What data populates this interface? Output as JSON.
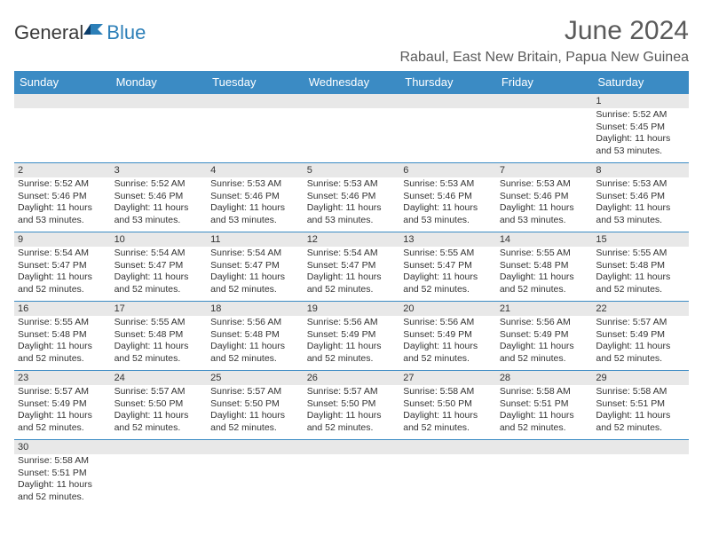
{
  "brand": {
    "part1": "General",
    "part2": "Blue"
  },
  "title": "June 2024",
  "location": "Rabaul, East New Britain, Papua New Guinea",
  "colors": {
    "header_bg": "#3b8bc4",
    "header_text": "#ffffff",
    "daynum_bg": "#e8e8e8",
    "border": "#3b8bc4",
    "title_color": "#5a5a5a",
    "brand_blue": "#2c7fb8"
  },
  "weekdays": [
    "Sunday",
    "Monday",
    "Tuesday",
    "Wednesday",
    "Thursday",
    "Friday",
    "Saturday"
  ],
  "startOffset": 6,
  "days": [
    {
      "n": 1,
      "sunrise": "5:52 AM",
      "sunset": "5:45 PM",
      "dl": "11 hours and 53 minutes."
    },
    {
      "n": 2,
      "sunrise": "5:52 AM",
      "sunset": "5:46 PM",
      "dl": "11 hours and 53 minutes."
    },
    {
      "n": 3,
      "sunrise": "5:52 AM",
      "sunset": "5:46 PM",
      "dl": "11 hours and 53 minutes."
    },
    {
      "n": 4,
      "sunrise": "5:53 AM",
      "sunset": "5:46 PM",
      "dl": "11 hours and 53 minutes."
    },
    {
      "n": 5,
      "sunrise": "5:53 AM",
      "sunset": "5:46 PM",
      "dl": "11 hours and 53 minutes."
    },
    {
      "n": 6,
      "sunrise": "5:53 AM",
      "sunset": "5:46 PM",
      "dl": "11 hours and 53 minutes."
    },
    {
      "n": 7,
      "sunrise": "5:53 AM",
      "sunset": "5:46 PM",
      "dl": "11 hours and 53 minutes."
    },
    {
      "n": 8,
      "sunrise": "5:53 AM",
      "sunset": "5:46 PM",
      "dl": "11 hours and 53 minutes."
    },
    {
      "n": 9,
      "sunrise": "5:54 AM",
      "sunset": "5:47 PM",
      "dl": "11 hours and 52 minutes."
    },
    {
      "n": 10,
      "sunrise": "5:54 AM",
      "sunset": "5:47 PM",
      "dl": "11 hours and 52 minutes."
    },
    {
      "n": 11,
      "sunrise": "5:54 AM",
      "sunset": "5:47 PM",
      "dl": "11 hours and 52 minutes."
    },
    {
      "n": 12,
      "sunrise": "5:54 AM",
      "sunset": "5:47 PM",
      "dl": "11 hours and 52 minutes."
    },
    {
      "n": 13,
      "sunrise": "5:55 AM",
      "sunset": "5:47 PM",
      "dl": "11 hours and 52 minutes."
    },
    {
      "n": 14,
      "sunrise": "5:55 AM",
      "sunset": "5:48 PM",
      "dl": "11 hours and 52 minutes."
    },
    {
      "n": 15,
      "sunrise": "5:55 AM",
      "sunset": "5:48 PM",
      "dl": "11 hours and 52 minutes."
    },
    {
      "n": 16,
      "sunrise": "5:55 AM",
      "sunset": "5:48 PM",
      "dl": "11 hours and 52 minutes."
    },
    {
      "n": 17,
      "sunrise": "5:55 AM",
      "sunset": "5:48 PM",
      "dl": "11 hours and 52 minutes."
    },
    {
      "n": 18,
      "sunrise": "5:56 AM",
      "sunset": "5:48 PM",
      "dl": "11 hours and 52 minutes."
    },
    {
      "n": 19,
      "sunrise": "5:56 AM",
      "sunset": "5:49 PM",
      "dl": "11 hours and 52 minutes."
    },
    {
      "n": 20,
      "sunrise": "5:56 AM",
      "sunset": "5:49 PM",
      "dl": "11 hours and 52 minutes."
    },
    {
      "n": 21,
      "sunrise": "5:56 AM",
      "sunset": "5:49 PM",
      "dl": "11 hours and 52 minutes."
    },
    {
      "n": 22,
      "sunrise": "5:57 AM",
      "sunset": "5:49 PM",
      "dl": "11 hours and 52 minutes."
    },
    {
      "n": 23,
      "sunrise": "5:57 AM",
      "sunset": "5:49 PM",
      "dl": "11 hours and 52 minutes."
    },
    {
      "n": 24,
      "sunrise": "5:57 AM",
      "sunset": "5:50 PM",
      "dl": "11 hours and 52 minutes."
    },
    {
      "n": 25,
      "sunrise": "5:57 AM",
      "sunset": "5:50 PM",
      "dl": "11 hours and 52 minutes."
    },
    {
      "n": 26,
      "sunrise": "5:57 AM",
      "sunset": "5:50 PM",
      "dl": "11 hours and 52 minutes."
    },
    {
      "n": 27,
      "sunrise": "5:58 AM",
      "sunset": "5:50 PM",
      "dl": "11 hours and 52 minutes."
    },
    {
      "n": 28,
      "sunrise": "5:58 AM",
      "sunset": "5:51 PM",
      "dl": "11 hours and 52 minutes."
    },
    {
      "n": 29,
      "sunrise": "5:58 AM",
      "sunset": "5:51 PM",
      "dl": "11 hours and 52 minutes."
    },
    {
      "n": 30,
      "sunrise": "5:58 AM",
      "sunset": "5:51 PM",
      "dl": "11 hours and 52 minutes."
    }
  ],
  "labels": {
    "sunrise": "Sunrise:",
    "sunset": "Sunset:",
    "daylight": "Daylight:"
  }
}
